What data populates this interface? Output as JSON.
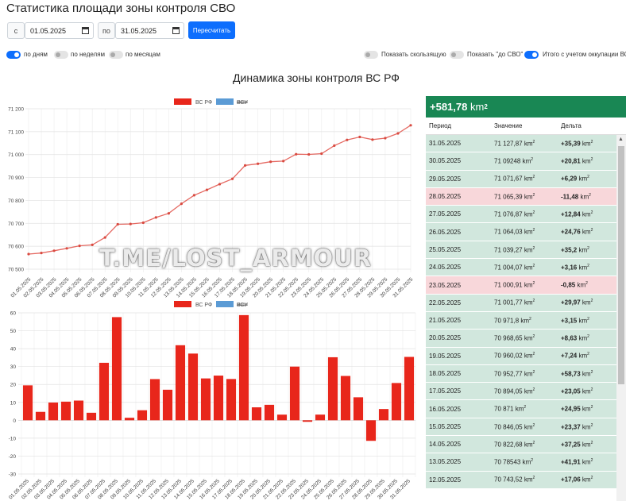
{
  "title": "Статистика площади зоны контроля СВО",
  "filters": {
    "from_label": "с",
    "from_value": "01.05.2025",
    "to_label": "по",
    "to_value": "31.05.2025",
    "recalc_label": "Пересчитать"
  },
  "toggles": {
    "by_days": "по дням",
    "by_weeks": "по неделям",
    "by_months": "по месяцам",
    "show_moving": "Показать скользящую",
    "show_before_svo": "Показать \"до СВО\"",
    "total_with_afu": "Итого с учетом оккупации ВСУ"
  },
  "chart_title": "Динамика зоны контроля ВС РФ",
  "watermark": "T.ME/LOST_ARMOUR",
  "colors": {
    "primary": "#0d6efd",
    "series_rf": "#e8261b",
    "series_afu": "#5b9bd5",
    "total_bg": "#198754"
  },
  "chart_data": [
    {
      "type": "line",
      "legend": [
        "ВС РФ",
        "ВСУ"
      ],
      "x": [
        "01.05.2025",
        "02.05.2025",
        "03.05.2025",
        "04.05.2025",
        "05.05.2025",
        "06.05.2025",
        "07.05.2025",
        "08.05.2025",
        "09.05.2025",
        "10.05.2025",
        "11.05.2025",
        "12.05.2025",
        "13.05.2025",
        "14.05.2025",
        "15.05.2025",
        "16.05.2025",
        "17.05.2025",
        "18.05.2025",
        "19.05.2025",
        "20.05.2025",
        "21.05.2025",
        "22.05.2025",
        "23.05.2025",
        "24.05.2025",
        "25.05.2025",
        "26.05.2025",
        "27.05.2025",
        "28.05.2025",
        "29.05.2025",
        "30.05.2025",
        "31.05.2025"
      ],
      "series": [
        {
          "name": "ВС РФ",
          "values": [
            70565.8,
            70570.5,
            70580.4,
            70590.8,
            70601.8,
            70606.0,
            70638.1,
            70695.7,
            70697.1,
            70702.7,
            70725.7,
            70743.5,
            70785.4,
            70822.7,
            70846.1,
            70871.0,
            70894.1,
            70952.8,
            70960.0,
            70968.7,
            70971.8,
            71001.8,
            71000.9,
            71004.1,
            71039.3,
            71064.0,
            71076.9,
            71065.4,
            71071.7,
            71092.5,
            71127.9
          ]
        }
      ],
      "ylim": [
        70500,
        71200
      ],
      "yticks": [
        70500,
        70600,
        70700,
        70800,
        70900,
        71000,
        71100,
        71200
      ],
      "ytick_labels": [
        "70 500",
        "70 600",
        "70 700",
        "70 800",
        "70 900",
        "71 000",
        "71 100",
        "71 200"
      ]
    },
    {
      "type": "bar",
      "legend": [
        "ВС РФ",
        "ВСУ"
      ],
      "x": [
        "01.05.2025",
        "02.05.2025",
        "03.05.2025",
        "04.05.2025",
        "05.05.2025",
        "06.05.2025",
        "07.05.2025",
        "08.05.2025",
        "09.05.2025",
        "10.05.2025",
        "11.05.2025",
        "12.05.2025",
        "13.05.2025",
        "14.05.2025",
        "15.05.2025",
        "16.05.2025",
        "17.05.2025",
        "18.05.2025",
        "19.05.2025",
        "20.05.2025",
        "21.05.2025",
        "22.05.2025",
        "23.05.2025",
        "24.05.2025",
        "25.05.2025",
        "26.05.2025",
        "27.05.2025",
        "28.05.2025",
        "29.05.2025",
        "30.05.2025",
        "31.05.2025"
      ],
      "series": [
        {
          "name": "ВС РФ",
          "values": [
            19.5,
            4.7,
            9.9,
            10.4,
            11.0,
            4.2,
            32.1,
            57.6,
            1.4,
            5.6,
            23.0,
            17.06,
            41.91,
            37.25,
            23.37,
            24.95,
            23.05,
            58.73,
            7.24,
            8.63,
            3.15,
            29.97,
            -0.85,
            3.16,
            35.2,
            24.76,
            12.84,
            -11.48,
            6.29,
            20.81,
            35.39
          ]
        }
      ],
      "ylim": [
        -30,
        60
      ],
      "yticks": [
        -30,
        -20,
        -10,
        0,
        10,
        20,
        30,
        40,
        50,
        60
      ]
    }
  ],
  "panel": {
    "total_value": "+581,78",
    "total_unit": "km",
    "headers": [
      "Период",
      "Значение",
      "Дельта"
    ],
    "rows": [
      {
        "date": "31.05.2025",
        "value": "71 127,87",
        "delta": "+35,39",
        "tone": "g"
      },
      {
        "date": "30.05.2025",
        "value": "71 09248",
        "delta": "+20,81",
        "tone": "g"
      },
      {
        "date": "29.05.2025",
        "value": "71 071,67",
        "delta": "+6,29",
        "tone": "g"
      },
      {
        "date": "28.05.2025",
        "value": "71 065,39",
        "delta": "-11,48",
        "tone": "r"
      },
      {
        "date": "27.05.2025",
        "value": "71 076,87",
        "delta": "+12,84",
        "tone": "g"
      },
      {
        "date": "26.05.2025",
        "value": "71 064,03",
        "delta": "+24,76",
        "tone": "g"
      },
      {
        "date": "25.05.2025",
        "value": "71 039,27",
        "delta": "+35,2",
        "tone": "g"
      },
      {
        "date": "24.05.2025",
        "value": "71 004,07",
        "delta": "+3,16",
        "tone": "g"
      },
      {
        "date": "23.05.2025",
        "value": "71 000,91",
        "delta": "-0,85",
        "tone": "r"
      },
      {
        "date": "22.05.2025",
        "value": "71 001,77",
        "delta": "+29,97",
        "tone": "g"
      },
      {
        "date": "21.05.2025",
        "value": "70 971,8",
        "delta": "+3,15",
        "tone": "g"
      },
      {
        "date": "20.05.2025",
        "value": "70 968,65",
        "delta": "+8,63",
        "tone": "g"
      },
      {
        "date": "19.05.2025",
        "value": "70 960,02",
        "delta": "+7,24",
        "tone": "g"
      },
      {
        "date": "18.05.2025",
        "value": "70 952,77",
        "delta": "+58,73",
        "tone": "g"
      },
      {
        "date": "17.05.2025",
        "value": "70 894,05",
        "delta": "+23,05",
        "tone": "g"
      },
      {
        "date": "16.05.2025",
        "value": "70 871",
        "delta": "+24,95",
        "tone": "g"
      },
      {
        "date": "15.05.2025",
        "value": "70 846,05",
        "delta": "+23,37",
        "tone": "g"
      },
      {
        "date": "14.05.2025",
        "value": "70 822,68",
        "delta": "+37,25",
        "tone": "g"
      },
      {
        "date": "13.05.2025",
        "value": "70 78543",
        "delta": "+41,91",
        "tone": "g"
      },
      {
        "date": "12.05.2025",
        "value": "70 743,52",
        "delta": "+17,06",
        "tone": "g"
      }
    ]
  }
}
